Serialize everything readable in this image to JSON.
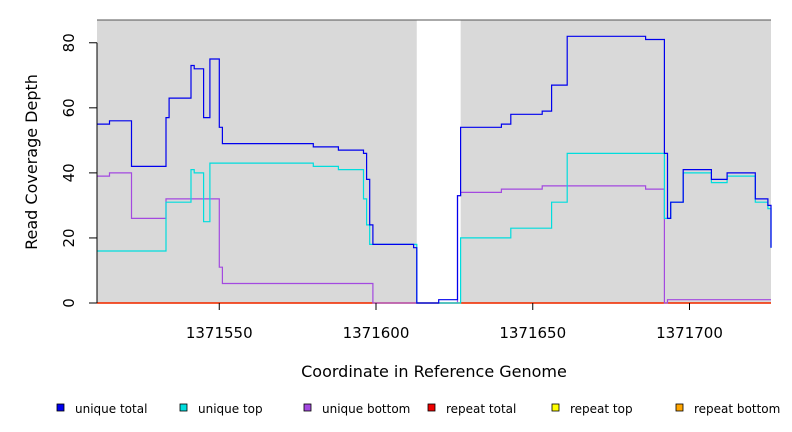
{
  "chart_data": {
    "type": "line",
    "title": "",
    "xlabel": "Coordinate in Reference Genome",
    "ylabel": "Read Coverage Depth",
    "xlim": [
      1371511,
      1371726
    ],
    "ylim": [
      0,
      87
    ],
    "x_ticks": [
      1371550,
      1371600,
      1371650,
      1371700
    ],
    "y_ticks": [
      0,
      20,
      40,
      60,
      80
    ],
    "shaded_regions": [
      [
        1371511,
        1371613
      ],
      [
        1371627,
        1371726
      ]
    ],
    "shade_color": "#d9d9d9",
    "legend_position": "bottom",
    "step_plot": true,
    "series": [
      {
        "name": "unique total",
        "color": "#0000ee",
        "points": [
          [
            1371511,
            55
          ],
          [
            1371515,
            56
          ],
          [
            1371522,
            42
          ],
          [
            1371533,
            57
          ],
          [
            1371534,
            63
          ],
          [
            1371541,
            73
          ],
          [
            1371542,
            72
          ],
          [
            1371545,
            57
          ],
          [
            1371547,
            75
          ],
          [
            1371550,
            54
          ],
          [
            1371551,
            49
          ],
          [
            1371580,
            48
          ],
          [
            1371588,
            47
          ],
          [
            1371596,
            46
          ],
          [
            1371597,
            38
          ],
          [
            1371598,
            24
          ],
          [
            1371599,
            18
          ],
          [
            1371612,
            17
          ],
          [
            1371613,
            0
          ],
          [
            1371620,
            1
          ],
          [
            1371626,
            33
          ],
          [
            1371627,
            54
          ],
          [
            1371640,
            55
          ],
          [
            1371643,
            58
          ],
          [
            1371653,
            59
          ],
          [
            1371656,
            67
          ],
          [
            1371661,
            82
          ],
          [
            1371686,
            81
          ],
          [
            1371692,
            46
          ],
          [
            1371693,
            26
          ],
          [
            1371694,
            31
          ],
          [
            1371698,
            41
          ],
          [
            1371707,
            38
          ],
          [
            1371712,
            40
          ],
          [
            1371721,
            32
          ],
          [
            1371725,
            30
          ],
          [
            1371726,
            17
          ]
        ]
      },
      {
        "name": "unique top",
        "color": "#00dddd",
        "points": [
          [
            1371511,
            16
          ],
          [
            1371533,
            31
          ],
          [
            1371541,
            41
          ],
          [
            1371542,
            40
          ],
          [
            1371545,
            25
          ],
          [
            1371547,
            43
          ],
          [
            1371580,
            42
          ],
          [
            1371588,
            41
          ],
          [
            1371596,
            32
          ],
          [
            1371597,
            24
          ],
          [
            1371598,
            18
          ],
          [
            1371613,
            0
          ],
          [
            1371627,
            20
          ],
          [
            1371643,
            23
          ],
          [
            1371656,
            31
          ],
          [
            1371661,
            46
          ],
          [
            1371692,
            26
          ],
          [
            1371694,
            31
          ],
          [
            1371698,
            40
          ],
          [
            1371707,
            37
          ],
          [
            1371712,
            39
          ],
          [
            1371721,
            31
          ],
          [
            1371725,
            29
          ],
          [
            1371726,
            17
          ]
        ]
      },
      {
        "name": "unique bottom",
        "color": "#a349e0",
        "points": [
          [
            1371511,
            39
          ],
          [
            1371515,
            40
          ],
          [
            1371522,
            26
          ],
          [
            1371533,
            32
          ],
          [
            1371550,
            11
          ],
          [
            1371551,
            6
          ],
          [
            1371599,
            0
          ],
          [
            1371626,
            33
          ],
          [
            1371627,
            34
          ],
          [
            1371640,
            35
          ],
          [
            1371653,
            36
          ],
          [
            1371686,
            35
          ],
          [
            1371692,
            0
          ],
          [
            1371693,
            1
          ],
          [
            1371726,
            1
          ]
        ]
      },
      {
        "name": "repeat total",
        "color": "#ee0000",
        "points": [
          [
            1371511,
            0
          ],
          [
            1371726,
            0
          ]
        ]
      },
      {
        "name": "repeat top",
        "color": "#ffff00",
        "points": [
          [
            1371511,
            0
          ],
          [
            1371726,
            0
          ]
        ]
      },
      {
        "name": "repeat bottom",
        "color": "#ffa500",
        "points": [
          [
            1371511,
            0
          ],
          [
            1371726,
            0
          ]
        ]
      }
    ]
  }
}
